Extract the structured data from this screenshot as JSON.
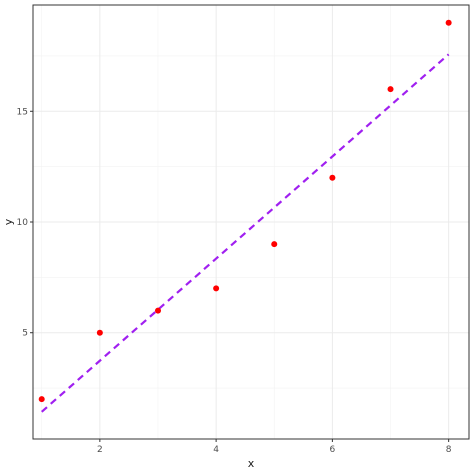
{
  "chart_data": {
    "type": "scatter",
    "title": "",
    "xlabel": "x",
    "ylabel": "y",
    "xlim": [
      0.85,
      8.35
    ],
    "ylim": [
      0.2,
      19.8
    ],
    "x_ticks": [
      2,
      4,
      6,
      8
    ],
    "y_ticks": [
      5,
      10,
      15
    ],
    "grid": true,
    "series": [
      {
        "kind": "points",
        "x": [
          1,
          2,
          3,
          4,
          5,
          6,
          7,
          8
        ],
        "y": [
          2,
          5,
          6,
          7,
          9,
          12,
          16,
          19
        ],
        "color": "#ff0000"
      },
      {
        "kind": "fitted-line",
        "style": "dashed",
        "x": [
          1,
          8
        ],
        "y": [
          1.43,
          17.57
        ],
        "color": "#a020f0"
      }
    ]
  }
}
